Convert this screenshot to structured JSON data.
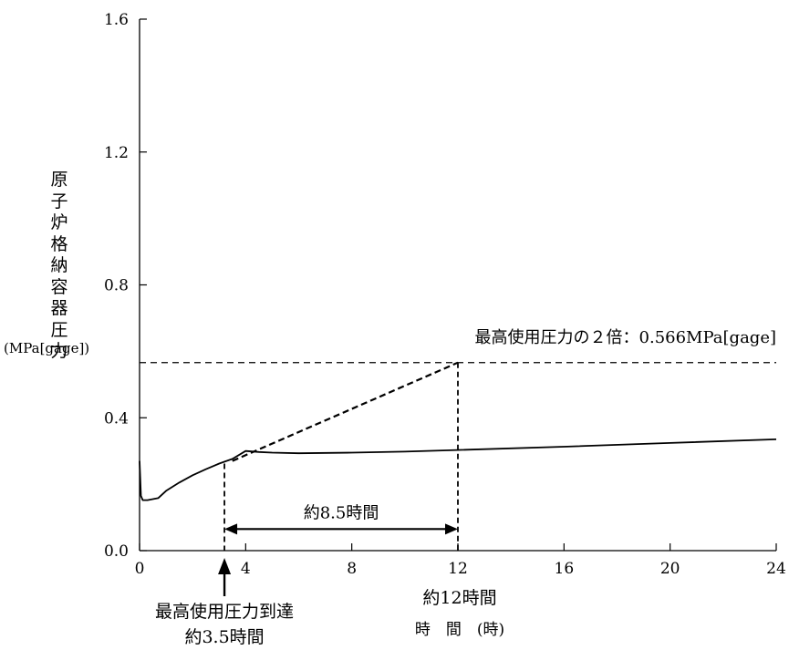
{
  "chart_data": {
    "type": "line",
    "xlabel": "時　間　(時)",
    "ylabel": "原子炉格納容器圧力",
    "ylabel_unit": "(MPa[gage])",
    "xlim": [
      0,
      24
    ],
    "ylim": [
      0.0,
      1.6
    ],
    "x_ticks": [
      0,
      4,
      8,
      12,
      16,
      20,
      24
    ],
    "x_tick_labels": [
      "0",
      "4",
      "8",
      "12",
      "16",
      "20",
      "24"
    ],
    "y_ticks": [
      0.0,
      0.4,
      0.8,
      1.2,
      1.6
    ],
    "y_tick_labels": [
      "0.0",
      "0.4",
      "0.8",
      "1.2",
      "1.6"
    ],
    "series": [
      {
        "style": "solid",
        "x": [
          0.0,
          0.05,
          0.12,
          0.3,
          0.7,
          1.0,
          1.5,
          2.0,
          2.5,
          3.0,
          3.5,
          4.0,
          4.5,
          5.0,
          6.0,
          8.0,
          10.0,
          12.0,
          16.0,
          20.0,
          24.0
        ],
        "y": [
          0.27,
          0.165,
          0.152,
          0.152,
          0.158,
          0.18,
          0.205,
          0.227,
          0.245,
          0.262,
          0.276,
          0.3,
          0.297,
          0.295,
          0.293,
          0.295,
          0.298,
          0.303,
          0.313,
          0.324,
          0.335
        ]
      }
    ],
    "extrapolation": {
      "style": "dashed",
      "x": [
        3.5,
        12.0
      ],
      "y": [
        0.27,
        0.566
      ]
    },
    "reference_line": {
      "style": "dashed",
      "y": 0.566,
      "label": "最高使用圧力の２倍：0.566MPa[gage]"
    },
    "markers": [
      {
        "x": 3.2,
        "label_lines": [
          "最高使用圧力到達",
          "約3.5時間"
        ]
      },
      {
        "x": 12.0,
        "label_lines": [
          "約12時間"
        ]
      }
    ],
    "duration_arrow": {
      "x_start": 3.2,
      "x_end": 12.0,
      "y": 0.065,
      "label": "約8.5時間"
    }
  }
}
